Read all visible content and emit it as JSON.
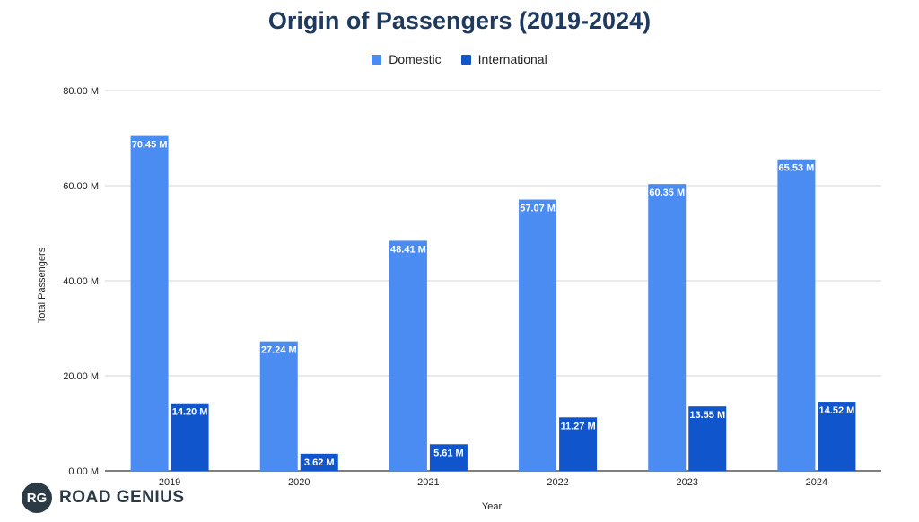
{
  "chart_data": {
    "type": "bar",
    "title": "Origin of Passengers (2019-2024)",
    "xlabel": "Year",
    "ylabel": "Total Passengers",
    "categories": [
      "2019",
      "2020",
      "2021",
      "2022",
      "2023",
      "2024"
    ],
    "series": [
      {
        "name": "Domestic",
        "color": "#4a8cf2",
        "values": [
          70.45,
          27.24,
          48.41,
          57.07,
          60.35,
          65.53
        ],
        "labels": [
          "70.45 M",
          "27.24 M",
          "48.41 M",
          "57.07 M",
          "60.35 M",
          "65.53 M"
        ]
      },
      {
        "name": "International",
        "color": "#1155cc",
        "values": [
          14.2,
          3.62,
          5.61,
          11.27,
          13.55,
          14.52
        ],
        "labels": [
          "14.20 M",
          "3.62 M",
          "5.61 M",
          "11.27 M",
          "13.55 M",
          "14.52 M"
        ]
      }
    ],
    "ylim": [
      0,
      80
    ],
    "yticks": [
      0,
      20,
      40,
      60,
      80
    ],
    "ytick_labels": [
      "0.00 M",
      "20.00 M",
      "40.00 M",
      "60.00 M",
      "80.00 M"
    ],
    "grid": true,
    "legend_position": "top-center"
  },
  "logo": {
    "initials": "RG",
    "text": "ROAD GENIUS"
  }
}
